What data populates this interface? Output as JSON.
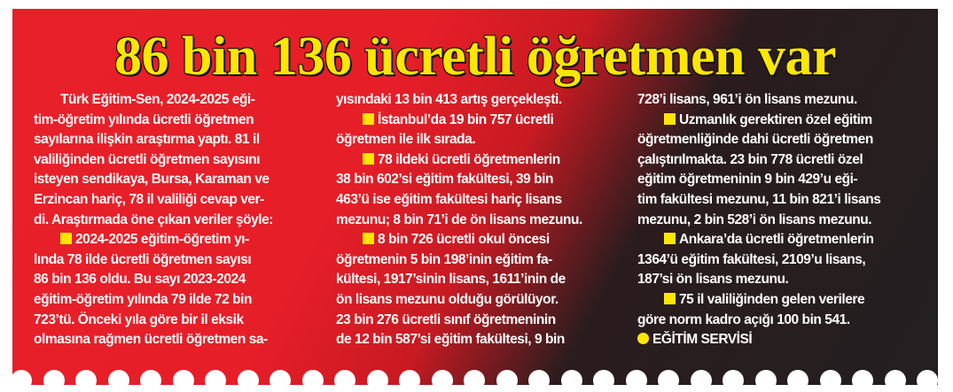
{
  "headline": "86 bin 136 ücretli öğretmen var",
  "accent_color": "#ffe600",
  "columns": [
    [
      {
        "t": "Türk Eğitim-Sen, 2024-2025 eği-",
        "indent": true
      },
      {
        "t": "tim-öğretim yılında ücretli öğretmen"
      },
      {
        "t": "sayılarına ilişkin araştırma yaptı. 81 il"
      },
      {
        "t": "valiliğinden ücretli öğretmen sayısını"
      },
      {
        "t": "isteyen sendikaya, Bursa, Karaman ve"
      },
      {
        "t": "Erzincan hariç, 78 il valiliği cevap ver-"
      },
      {
        "t": "di. Araştırmada öne çıkan veriler şöyle:"
      },
      {
        "t": "2024-2025 eğitim-öğretim yı-",
        "indent": true,
        "bullet": "square"
      },
      {
        "t": "lında 78 ilde ücretli öğretmen sayısı"
      },
      {
        "t": "86 bin 136 oldu. Bu sayı 2023-2024"
      },
      {
        "t": "eğitim-öğretim yılında 79 ilde 72 bin"
      },
      {
        "t": "723’tü. Önceki yıla göre bir il eksik"
      },
      {
        "t": "olmasına rağmen ücretli öğretmen sa-"
      }
    ],
    [
      {
        "t": "yısındaki 13 bin 413 artış gerçekleşti."
      },
      {
        "t": "İstanbul’da 19 bin 757 ücretli",
        "indent": true,
        "bullet": "square"
      },
      {
        "t": "öğretmen ile ilk sırada."
      },
      {
        "t": "78 ildeki ücretli öğretmenlerin",
        "indent": true,
        "bullet": "square"
      },
      {
        "t": "38 bin 602’si eğitim fakültesi, 39 bin"
      },
      {
        "t": "463’ü ise eğitim fakültesi hariç lisans"
      },
      {
        "t": "mezunu; 8 bin 71’i de ön lisans mezunu."
      },
      {
        "t": "8 bin 726 ücretli okul öncesi",
        "indent": true,
        "bullet": "square"
      },
      {
        "t": "öğretmenin 5 bin 198’inin eğitim fa-"
      },
      {
        "t": "kültesi, 1917’sinin lisans, 1611’inin de"
      },
      {
        "t": "ön lisans mezunu olduğu görülüyor."
      },
      {
        "t": "23 bin 276 ücretli sınıf öğretmeninin"
      },
      {
        "t": "de 12 bin 587’si eğitim fakültesi, 9 bin"
      }
    ],
    [
      {
        "t": "728’i lisans, 961’i ön lisans mezunu."
      },
      {
        "t": "Uzmanlık gerektiren özel eğitim",
        "indent": true,
        "bullet": "square"
      },
      {
        "t": "öğretmenliğinde dahi ücretli öğretmen"
      },
      {
        "t": "çalıştırılmakta. 23 bin 778 ücretli özel"
      },
      {
        "t": "eğitim öğretmeninin 9 bin 429’u eği-"
      },
      {
        "t": "tim fakültesi mezunu, 11 bin 821’i lisans"
      },
      {
        "t": "mezunu, 2 bin 528’i ön lisans mezunu."
      },
      {
        "t": "Ankara’da ücretli öğretmenlerin",
        "indent": true,
        "bullet": "square"
      },
      {
        "t": "1364’ü eğitim fakültesi, 2109’u lisans,"
      },
      {
        "t": "187’si ön lisans mezunu."
      },
      {
        "t": "75 il valiliğinden gelen verilere",
        "indent": true,
        "bullet": "square"
      },
      {
        "t": "göre norm kadro açığı 100 bin 541."
      },
      {
        "t": "EĞİTİM SERVİSİ",
        "bullet": "circle"
      }
    ]
  ]
}
